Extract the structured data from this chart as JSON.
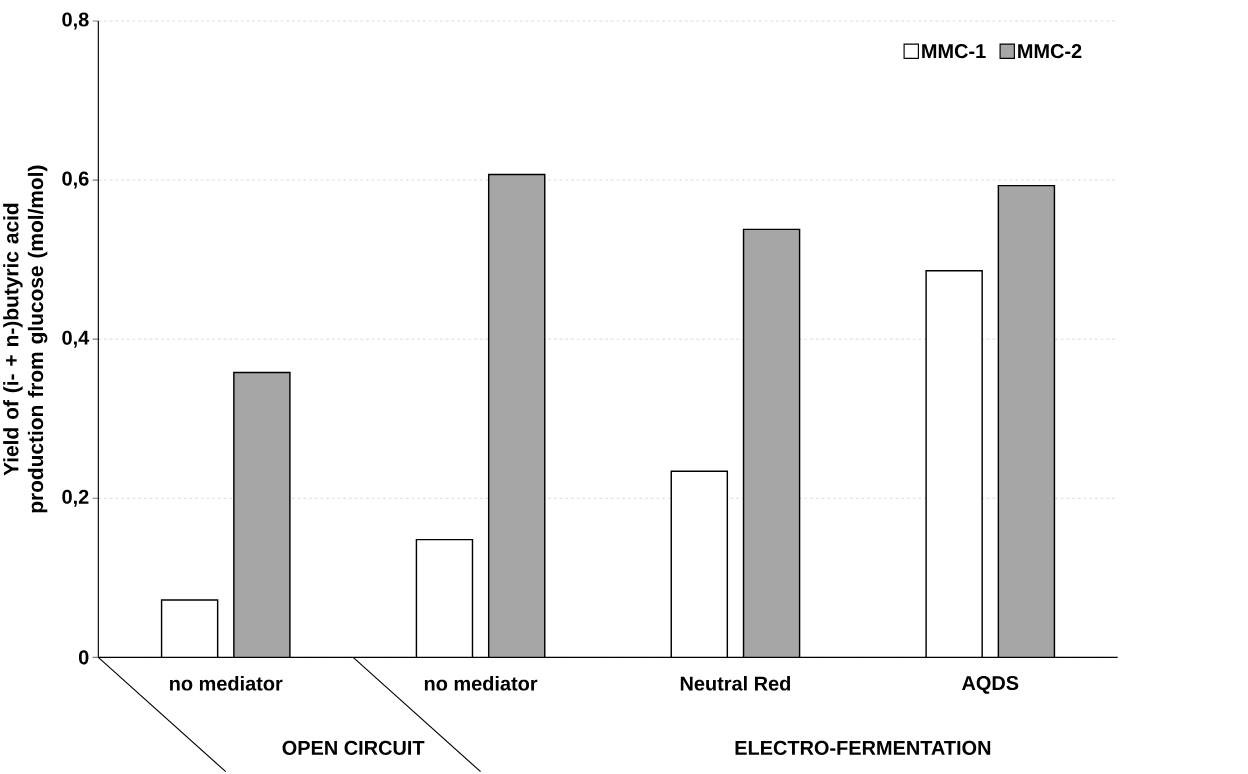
{
  "chart_data": {
    "type": "bar",
    "ylabel": "Yield of (i- + n-)butyric acid production from glucose (mol/mol)",
    "categories": [
      "no mediator",
      "no mediator",
      "Neutral Red",
      "AQDS"
    ],
    "series": [
      {
        "name": "MMC-1",
        "color": "#ffffff",
        "values": [
          0.072,
          0.148,
          0.234,
          0.486
        ]
      },
      {
        "name": "MMC-2",
        "color": "#a6a6a6",
        "values": [
          0.358,
          0.607,
          0.538,
          0.593
        ]
      }
    ],
    "ylim": [
      0,
      0.8
    ],
    "yticks": [
      0,
      {
        "value": 0.2,
        "label": "0,2"
      },
      {
        "value": 0.4,
        "label": "0,4"
      },
      {
        "value": 0.6,
        "label": "0,6"
      },
      {
        "value": 0.8,
        "label": "0,8"
      }
    ],
    "grid": "y",
    "legend": "top right",
    "annotations": [
      "OPEN CIRCUIT",
      "ELECTRO-FERMENTATION"
    ]
  }
}
